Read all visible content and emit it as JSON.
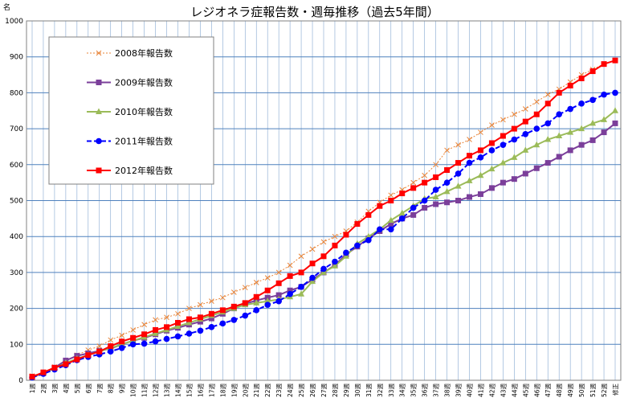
{
  "chart_data": {
    "type": "line",
    "title": "レジオネラ症報告数・週毎推移（過去5年間）",
    "ylabel": "名",
    "ylim": [
      0,
      1000
    ],
    "yticks": [
      0,
      100,
      200,
      300,
      400,
      500,
      600,
      700,
      800,
      900,
      1000
    ],
    "grid": true,
    "legend_position": "top-left",
    "categories": [
      "1週",
      "2週",
      "3週",
      "4週",
      "5週",
      "6週",
      "7週",
      "8週",
      "9週",
      "10週",
      "11週",
      "12週",
      "13週",
      "14週",
      "15週",
      "16週",
      "17週",
      "18週",
      "19週",
      "20週",
      "21週",
      "22週",
      "23週",
      "24週",
      "25週",
      "26週",
      "27週",
      "28週",
      "29週",
      "30週",
      "31週",
      "32週",
      "33週",
      "34週",
      "35週",
      "36週",
      "37週",
      "38週",
      "39週",
      "40週",
      "41週",
      "42週",
      "43週",
      "44週",
      "45週",
      "46週",
      "47週",
      "48週",
      "49週",
      "50週",
      "51週",
      "52週",
      "修正"
    ],
    "series": [
      {
        "name": "2008年報告数",
        "color": "#E8853A",
        "dash": "2,2",
        "marker": "x",
        "values": [
          12,
          22,
          37,
          52,
          70,
          84,
          95,
          112,
          125,
          140,
          155,
          168,
          175,
          185,
          200,
          210,
          220,
          230,
          245,
          258,
          272,
          285,
          300,
          320,
          345,
          365,
          385,
          400,
          415,
          440,
          470,
          495,
          515,
          530,
          550,
          570,
          600,
          640,
          655,
          670,
          690,
          710,
          725,
          740,
          755,
          775,
          795,
          810,
          830,
          850,
          865,
          880,
          890
        ]
      },
      {
        "name": "2009年報告数",
        "color": "#7B3F9A",
        "dash": "",
        "marker": "square",
        "values": [
          8,
          20,
          35,
          55,
          68,
          75,
          82,
          88,
          100,
          110,
          118,
          128,
          138,
          146,
          155,
          163,
          172,
          185,
          200,
          213,
          222,
          230,
          237,
          250,
          260,
          280,
          300,
          320,
          350,
          372,
          395,
          415,
          435,
          450,
          460,
          480,
          490,
          495,
          500,
          510,
          518,
          535,
          550,
          560,
          575,
          590,
          605,
          622,
          640,
          655,
          668,
          690,
          715
        ]
      },
      {
        "name": "2010年報告数",
        "color": "#9BBB59",
        "dash": "",
        "marker": "triangle",
        "values": [
          10,
          20,
          33,
          48,
          60,
          70,
          80,
          90,
          100,
          110,
          120,
          130,
          140,
          150,
          160,
          170,
          180,
          190,
          200,
          210,
          215,
          220,
          225,
          232,
          240,
          275,
          300,
          318,
          345,
          380,
          400,
          420,
          445,
          465,
          485,
          505,
          510,
          525,
          540,
          555,
          570,
          588,
          605,
          620,
          640,
          655,
          670,
          680,
          690,
          700,
          715,
          725,
          750
        ]
      },
      {
        "name": "2011年報告数",
        "color": "#0000FF",
        "dash": "6,3",
        "marker": "circle",
        "values": [
          8,
          18,
          30,
          42,
          56,
          65,
          72,
          80,
          90,
          100,
          102,
          108,
          115,
          122,
          130,
          138,
          148,
          158,
          168,
          180,
          195,
          210,
          220,
          240,
          260,
          285,
          310,
          330,
          355,
          375,
          390,
          420,
          420,
          450,
          480,
          500,
          530,
          550,
          575,
          605,
          620,
          640,
          655,
          670,
          685,
          700,
          715,
          740,
          755,
          770,
          780,
          795,
          800
        ]
      },
      {
        "name": "2012年報告数",
        "color": "#FF0000",
        "dash": "",
        "marker": "square",
        "values": [
          10,
          22,
          35,
          45,
          58,
          70,
          80,
          95,
          108,
          118,
          128,
          140,
          148,
          160,
          170,
          175,
          185,
          195,
          205,
          215,
          232,
          250,
          270,
          290,
          300,
          325,
          345,
          375,
          405,
          435,
          460,
          485,
          500,
          520,
          535,
          550,
          565,
          585,
          605,
          625,
          640,
          660,
          680,
          700,
          720,
          740,
          770,
          800,
          820,
          840,
          860,
          880,
          890
        ]
      }
    ]
  }
}
